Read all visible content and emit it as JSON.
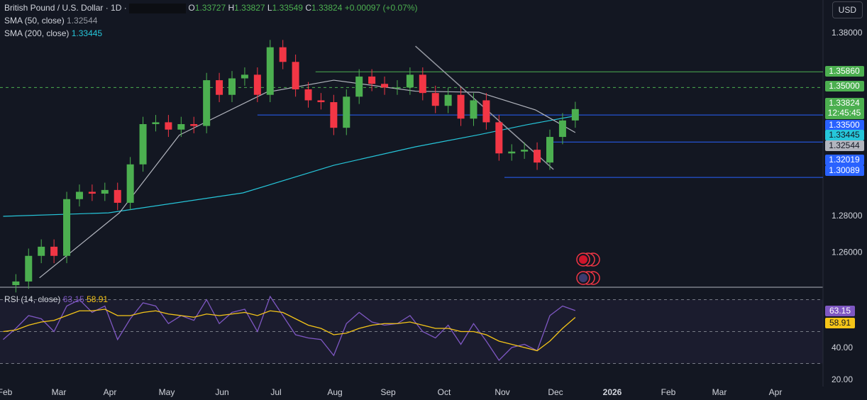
{
  "header": {
    "symbol": "British Pound / U.S. Dollar · 1D ·",
    "o_label": "O",
    "o": "1.33727",
    "h_label": "H",
    "h": "1.33827",
    "l_label": "L",
    "l": "1.33549",
    "c_label": "C",
    "c": "1.33824",
    "change": "+0.00097 (+0.07%)",
    "currency": "USD"
  },
  "indicators": {
    "sma50_label": "SMA (50, close)",
    "sma50_value": "1.32544",
    "sma200_label": "SMA (200, close)",
    "sma200_value": "1.33445",
    "rsi_label": "RSI (14, close)",
    "rsi_value": "63.15",
    "rsi_ma_value": "58.91"
  },
  "colors": {
    "up": "#4caf50",
    "down": "#f23645",
    "sma50": "#b2b5be",
    "sma200": "#26c6da",
    "rsi": "#7e57c2",
    "rsi_ma": "#f5c518",
    "level_blue": "#2962ff",
    "level_green": "#4caf50"
  },
  "chart_data": [
    {
      "type": "candlestick",
      "ylim": [
        1.23,
        1.39
      ],
      "yticks": [
        "1.38000",
        "1.28000",
        "1.26000"
      ],
      "xticks": [
        "Feb",
        "Mar",
        "Apr",
        "May",
        "Jun",
        "Jul",
        "Aug",
        "Sep",
        "Oct",
        "Nov",
        "Dec",
        "2026",
        "Feb",
        "Mar",
        "Apr"
      ],
      "dates": [
        "2025-01-31",
        "2025-02-07",
        "2025-02-14",
        "2025-02-21",
        "2025-02-28",
        "2025-03-07",
        "2025-03-14",
        "2025-03-21",
        "2025-03-28",
        "2025-04-04",
        "2025-04-11",
        "2025-04-18",
        "2025-04-25",
        "2025-05-02",
        "2025-05-09",
        "2025-05-16",
        "2025-05-23",
        "2025-05-30",
        "2025-06-06",
        "2025-06-13",
        "2025-06-20",
        "2025-06-27",
        "2025-07-04",
        "2025-07-11",
        "2025-07-18",
        "2025-07-25",
        "2025-08-01",
        "2025-08-08",
        "2025-08-15",
        "2025-08-22",
        "2025-08-29",
        "2025-09-05",
        "2025-09-12",
        "2025-09-19",
        "2025-09-26",
        "2025-10-03",
        "2025-10-10",
        "2025-10-17",
        "2025-10-24",
        "2025-10-31",
        "2025-11-07",
        "2025-11-14",
        "2025-11-21",
        "2025-11-28",
        "2025-12-05",
        "2025-12-12"
      ],
      "close": [
        1.242,
        1.244,
        1.258,
        1.263,
        1.258,
        1.289,
        1.293,
        1.292,
        1.294,
        1.287,
        1.308,
        1.33,
        1.331,
        1.327,
        1.33,
        1.329,
        1.354,
        1.346,
        1.355,
        1.357,
        1.346,
        1.372,
        1.364,
        1.349,
        1.343,
        1.342,
        1.328,
        1.345,
        1.356,
        1.352,
        1.35,
        1.35,
        1.357,
        1.347,
        1.34,
        1.346,
        1.333,
        1.343,
        1.331,
        1.314,
        1.315,
        1.316,
        1.309,
        1.323,
        1.332,
        1.3382
      ],
      "sma50": [
        [
          "2025-02-20",
          1.246
        ],
        [
          "2025-04-05",
          1.2815
        ],
        [
          "2025-05-08",
          1.324
        ],
        [
          "2025-06-25",
          1.3474
        ],
        [
          "2025-08-01",
          1.354
        ],
        [
          "2025-09-15",
          1.348
        ],
        [
          "2025-10-20",
          1.3474
        ],
        [
          "2025-11-20",
          1.3378
        ],
        [
          "2025-12-12",
          1.3254
        ]
      ],
      "sma200": [
        [
          "2025-01-31",
          1.2796
        ],
        [
          "2025-03-30",
          1.2815
        ],
        [
          "2025-06-12",
          1.2924
        ],
        [
          "2025-08-01",
          1.3075
        ],
        [
          "2025-09-15",
          1.3176
        ],
        [
          "2025-10-20",
          1.3242
        ],
        [
          "2025-11-15",
          1.3296
        ],
        [
          "2025-12-12",
          1.3345
        ]
      ],
      "levels": [
        {
          "value": "1.35860",
          "color": "green",
          "from": "2025-07-22"
        },
        {
          "value": "1.35000",
          "color": "green",
          "dashed": true
        },
        {
          "value": "1.33824",
          "sub": "12:45:45",
          "color": "green",
          "current": true
        },
        {
          "value": "1.33500",
          "color": "blue",
          "from": "2025-06-20"
        },
        {
          "value": "1.33445",
          "color": "teal"
        },
        {
          "value": "1.32544",
          "color": "gray"
        },
        {
          "value": "1.32019",
          "color": "blue",
          "from": "2025-11-28"
        },
        {
          "value": "1.30089",
          "color": "blue",
          "from": "2025-11-03"
        }
      ],
      "trendline": [
        [
          "2025-09-15",
          1.3726
        ],
        [
          "2025-11-30",
          1.3052
        ]
      ]
    },
    {
      "type": "line",
      "title": "RSI (14, close)",
      "ylim": [
        15,
        80
      ],
      "yticks": [
        "40.00",
        "20.00"
      ],
      "bands": [
        70,
        50,
        30
      ],
      "rsi": [
        45,
        52,
        60,
        58,
        50,
        66,
        70,
        62,
        66,
        45,
        58,
        68,
        66,
        55,
        60,
        57,
        70,
        55,
        62,
        64,
        50,
        72,
        60,
        48,
        46,
        45,
        35,
        55,
        62,
        56,
        54,
        55,
        60,
        50,
        46,
        54,
        42,
        55,
        44,
        32,
        40,
        42,
        38,
        60,
        66,
        63.15
      ],
      "rsi_ma": [
        50,
        51,
        54,
        56,
        57,
        60,
        63,
        63,
        64,
        60,
        60,
        62,
        63,
        61,
        60,
        59,
        61,
        60,
        61,
        62,
        60,
        63,
        62,
        58,
        54,
        52,
        48,
        49,
        52,
        54,
        55,
        55,
        56,
        54,
        52,
        52,
        50,
        50,
        48,
        44,
        42,
        40,
        38,
        44,
        52,
        58.91
      ]
    }
  ]
}
